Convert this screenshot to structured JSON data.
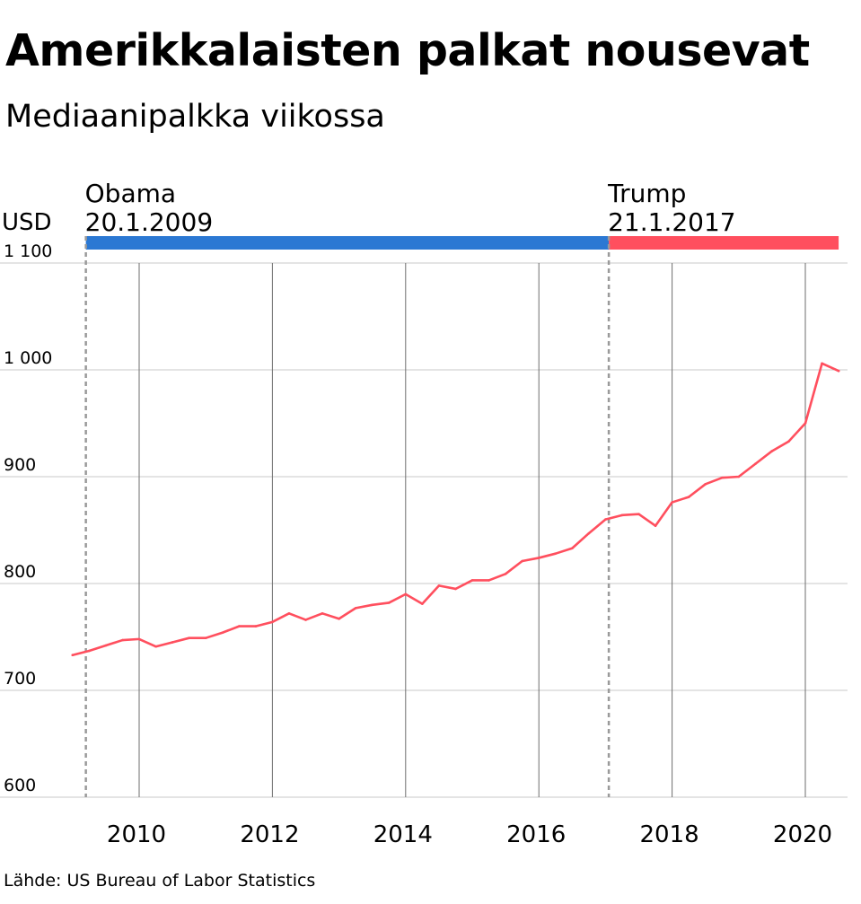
{
  "title": "Amerikkalaisten palkat nousevat",
  "subtitle": "Mediaanipalkka viikossa",
  "source": "Lähde: US Bureau of Labor Statistics",
  "colors": {
    "line": "#ff4f5e",
    "obama": "#2b78d3",
    "trump": "#ff4f5e",
    "grid": "#c8c8c8",
    "year_grid": "#6e6e6e",
    "marker": "#9a9a9a"
  },
  "chart_data": {
    "type": "line",
    "title": "Amerikkalaisten palkat nousevat",
    "subtitle": "Mediaanipalkka viikossa",
    "ylabel": "USD",
    "ylim": [
      600,
      1100
    ],
    "xlim": [
      2009.0,
      2020.6
    ],
    "y_ticks": [
      {
        "value": 1100,
        "label": "1 100"
      },
      {
        "value": 1000,
        "label": "1 000"
      },
      {
        "value": 900,
        "label": "900"
      },
      {
        "value": 800,
        "label": "800"
      },
      {
        "value": 700,
        "label": "700"
      },
      {
        "value": 600,
        "label": "600"
      }
    ],
    "x_ticks": [
      {
        "value": 2010,
        "label": "2010"
      },
      {
        "value": 2012,
        "label": "2012"
      },
      {
        "value": 2014,
        "label": "2014"
      },
      {
        "value": 2016,
        "label": "2016"
      },
      {
        "value": 2018,
        "label": "2018"
      },
      {
        "value": 2020,
        "label": "2020"
      }
    ],
    "grid": true,
    "periods": [
      {
        "name": "Obama",
        "date": "20.1.2009",
        "start": 2009.2,
        "end": 2017.05,
        "color": "#2b78d3"
      },
      {
        "name": "Trump",
        "date": "21.1.2017",
        "start": 2017.05,
        "end": 2020.5,
        "color": "#ff4f5e"
      }
    ],
    "series": [
      {
        "color": "#ff4f5e",
        "points": [
          [
            2009.0,
            733
          ],
          [
            2009.25,
            737
          ],
          [
            2009.5,
            742
          ],
          [
            2009.75,
            747
          ],
          [
            2010.0,
            748
          ],
          [
            2010.25,
            741
          ],
          [
            2010.5,
            745
          ],
          [
            2010.75,
            749
          ],
          [
            2011.0,
            749
          ],
          [
            2011.25,
            754
          ],
          [
            2011.5,
            760
          ],
          [
            2011.75,
            760
          ],
          [
            2012.0,
            764
          ],
          [
            2012.25,
            772
          ],
          [
            2012.5,
            766
          ],
          [
            2012.75,
            772
          ],
          [
            2013.0,
            767
          ],
          [
            2013.25,
            777
          ],
          [
            2013.5,
            780
          ],
          [
            2013.75,
            782
          ],
          [
            2014.0,
            790
          ],
          [
            2014.25,
            781
          ],
          [
            2014.5,
            798
          ],
          [
            2014.75,
            795
          ],
          [
            2015.0,
            803
          ],
          [
            2015.25,
            803
          ],
          [
            2015.5,
            809
          ],
          [
            2015.75,
            821
          ],
          [
            2016.0,
            824
          ],
          [
            2016.25,
            828
          ],
          [
            2016.5,
            833
          ],
          [
            2016.75,
            847
          ],
          [
            2017.0,
            860
          ],
          [
            2017.25,
            864
          ],
          [
            2017.5,
            865
          ],
          [
            2017.75,
            854
          ],
          [
            2018.0,
            876
          ],
          [
            2018.25,
            881
          ],
          [
            2018.5,
            893
          ],
          [
            2018.75,
            899
          ],
          [
            2019.0,
            900
          ],
          [
            2019.25,
            912
          ],
          [
            2019.5,
            924
          ],
          [
            2019.75,
            933
          ],
          [
            2020.0,
            950
          ],
          [
            2020.25,
            1006
          ],
          [
            2020.5,
            999
          ]
        ]
      }
    ]
  }
}
